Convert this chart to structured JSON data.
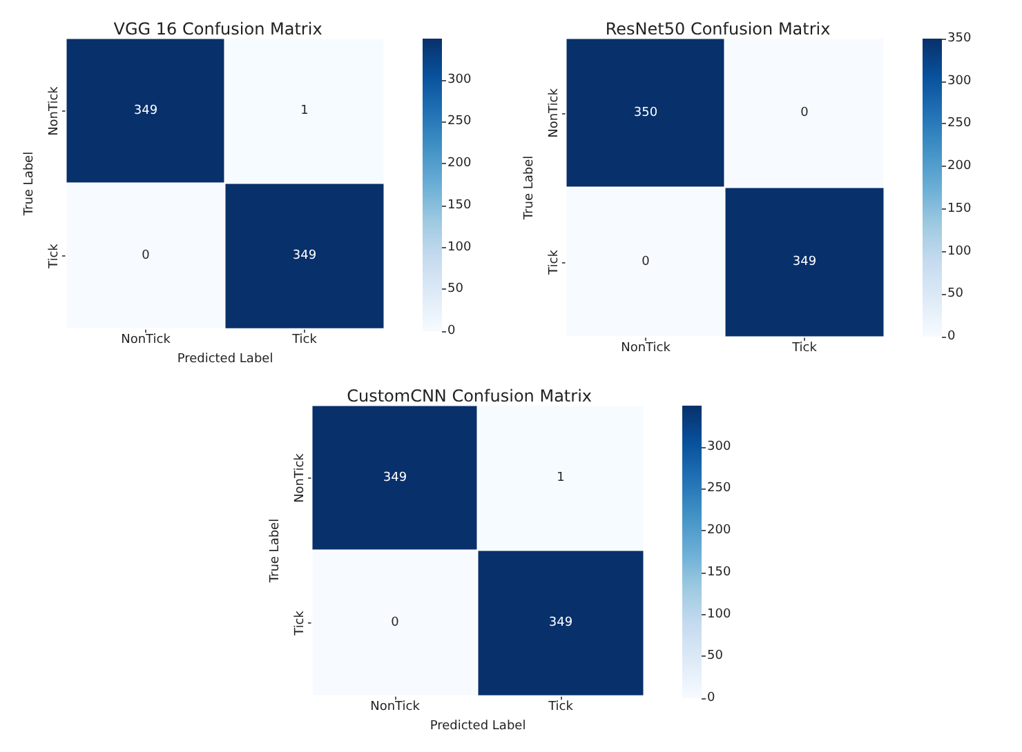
{
  "chart_data": [
    {
      "type": "heatmap",
      "title": "VGG 16 Confusion Matrix",
      "xlabel": "Predicted Label",
      "ylabel": "True Label",
      "categories": [
        "NonTick",
        "Tick"
      ],
      "y_categories": [
        "NonTick",
        "Tick"
      ],
      "cells": [
        [
          349,
          1
        ],
        [
          0,
          349
        ]
      ],
      "clim": [
        0,
        349
      ],
      "cticks": [
        0,
        50,
        100,
        150,
        200,
        250,
        300
      ],
      "data_labels": true
    },
    {
      "type": "heatmap",
      "title": "ResNet50 Confusion Matrix",
      "ylabel": "True Label",
      "categories": [
        "NonTick",
        "Tick"
      ],
      "y_categories": [
        "NonTick",
        "Tick"
      ],
      "cells": [
        [
          350,
          0
        ],
        [
          0,
          349
        ]
      ],
      "clim": [
        0,
        350
      ],
      "cticks": [
        0,
        50,
        100,
        150,
        200,
        250,
        300,
        350
      ],
      "data_labels": true
    },
    {
      "type": "heatmap",
      "title": "CustomCNN Confusion Matrix",
      "xlabel": "Predicted Label",
      "ylabel": "True Label",
      "categories": [
        "NonTick",
        "Tick"
      ],
      "y_categories": [
        "NonTick",
        "Tick"
      ],
      "cells": [
        [
          349,
          1
        ],
        [
          0,
          349
        ]
      ],
      "clim": [
        0,
        349
      ],
      "cticks": [
        0,
        50,
        100,
        150,
        200,
        250,
        300
      ],
      "data_labels": true
    }
  ]
}
